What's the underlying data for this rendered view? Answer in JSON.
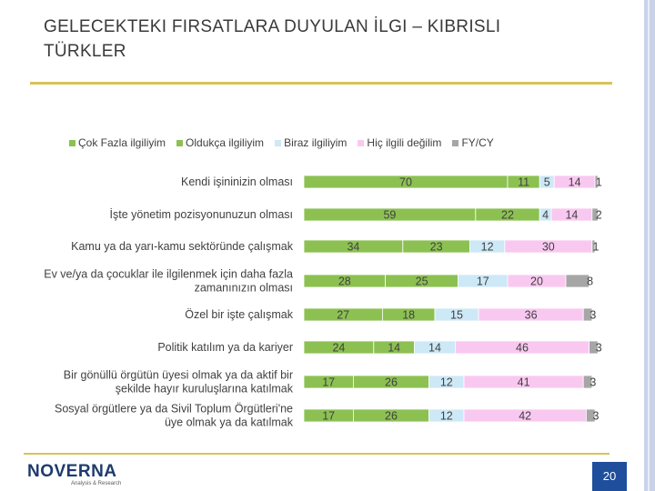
{
  "title": "Gelecekteki Fırsatlara duyulan İlgi – Kıbrıslı Türkler",
  "title_display_line1": "GELECEKTEKI FIRSATLARA DUYULAN İLGI – KIBRISLI",
  "title_display_line2": "TÜRKLER",
  "page_number": "20",
  "logo": {
    "brand": "NOVERNA",
    "tagline": "Analysis & Research"
  },
  "colors": {
    "cok_fazla": "#8cc152",
    "oldukca": "#8cc152",
    "biraz": "#cde8f6",
    "hic": "#f9c8f0",
    "fy_cy": "#a6a6a6",
    "accent_rule": "#d8c35a",
    "page_num_bg": "#1f4e9c"
  },
  "chart_data": {
    "type": "bar",
    "orientation": "horizontal",
    "stacked": true,
    "title": "",
    "xlim": [
      0,
      100
    ],
    "legend_position": "top",
    "categories": [
      "Kendi işininizin olması",
      "İşte yönetim pozisyonunuzun olması",
      "Kamu ya da yarı-kamu sektöründe çalışmak",
      "Ev ve/ya da çocuklar ile ilgilenmek için daha fazla zamanınızın olması",
      "Özel bir işte çalışmak",
      "Politik katılım ya da kariyer",
      "Bir gönüllü örgütün üyesi olmak ya da aktif bir şekilde hayır kuruluşlarına katılmak",
      "Sosyal örgütlere ya da Sivil Toplum Örgütleri'ne üye olmak ya da katılmak"
    ],
    "category_lines": [
      [
        "Kendi işininizin olması"
      ],
      [
        "İşte yönetim pozisyonunuzun olması"
      ],
      [
        "Kamu ya da yarı-kamu sektöründe çalışmak"
      ],
      [
        "Ev ve/ya da çocuklar ile ilgilenmek için daha fazla",
        "zamanınızın olması"
      ],
      [
        "Özel bir işte çalışmak"
      ],
      [
        "Politik katılım ya da kariyer"
      ],
      [
        "Bir gönüllü örgütün üyesi olmak ya da aktif bir",
        "şekilde hayır kuruluşlarına katılmak"
      ],
      [
        "Sosyal örgütlere ya da Sivil Toplum Örgütleri'ne",
        "üye olmak ya da katılmak"
      ]
    ],
    "series": [
      {
        "name": "Çok Fazla ilgiliyim",
        "color": "#8cc152",
        "values": [
          70,
          59,
          34,
          28,
          27,
          24,
          17,
          17
        ]
      },
      {
        "name": "Oldukça ilgiliyim",
        "color": "#8cc152",
        "values": [
          11,
          22,
          23,
          25,
          18,
          14,
          26,
          26
        ]
      },
      {
        "name": "Biraz ilgiliyim",
        "color": "#cde8f6",
        "values": [
          5,
          4,
          12,
          17,
          15,
          14,
          12,
          12
        ]
      },
      {
        "name": "Hiç ilgili değilim",
        "color": "#f9c8f0",
        "values": [
          14,
          14,
          30,
          20,
          36,
          46,
          41,
          42
        ]
      },
      {
        "name": "FY/CY",
        "color": "#a6a6a6",
        "values": [
          1,
          2,
          1,
          8,
          3,
          3,
          3,
          3
        ]
      }
    ]
  }
}
